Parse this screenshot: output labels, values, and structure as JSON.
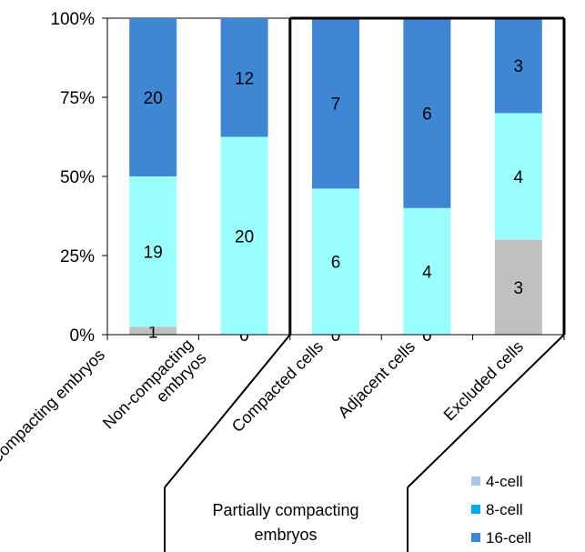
{
  "chart_data": {
    "type": "bar",
    "stacked": "percent",
    "categories": [
      "Compacting embryos",
      "Non-compacting\nembryos",
      "Compacted cells",
      "Adjacent cells",
      "Excluded cells"
    ],
    "series": [
      {
        "name": "4-cell",
        "values": [
          1,
          0,
          0,
          0,
          3
        ],
        "color": "#c0c0c0",
        "legend_color": "#a9c4e8"
      },
      {
        "name": "8-cell",
        "values": [
          19,
          20,
          6,
          4,
          4
        ],
        "color": "#99ffff",
        "legend_color": "#00b0f0"
      },
      {
        "name": "16-cell",
        "values": [
          20,
          12,
          7,
          6,
          3
        ],
        "color": "#3f87d4",
        "legend_color": "#3f87d4"
      }
    ],
    "y_ticks": [
      "0%",
      "25%",
      "50%",
      "75%",
      "100%"
    ],
    "ylim": [
      0,
      100
    ],
    "legend_position": "bottom-right",
    "group_label": "Partially  compacting\nembryos",
    "group_categories": [
      "Compacted cells",
      "Adjacent cells",
      "Excluded cells"
    ]
  }
}
